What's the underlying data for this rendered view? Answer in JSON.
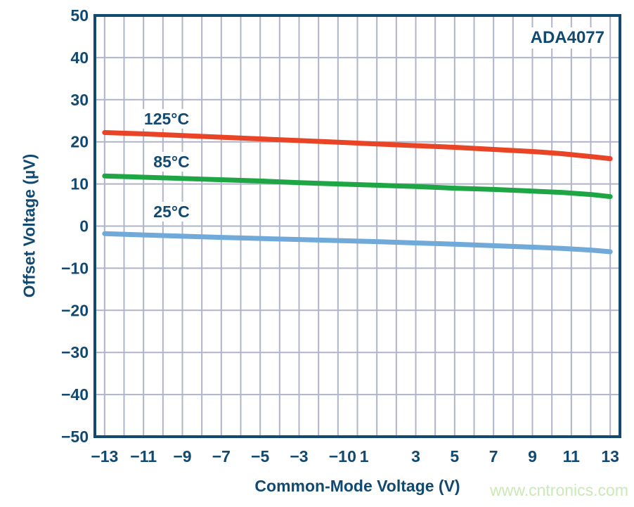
{
  "branding": {
    "part_number": "ADA4077",
    "watermark": "www.cntronics.com"
  },
  "colors": {
    "navy_text_and_axes": "#114971",
    "gridline": "#B0B4C8",
    "series_125c": "#E84425",
    "series_85c": "#1FA644",
    "series_25c": "#71A9D8",
    "watermark_green": "#CBE8B7",
    "background": "#FFFFFF"
  },
  "chart_data": {
    "type": "line",
    "title": "",
    "xlabel": "Common-Mode Voltage (V)",
    "ylabel": "Offset Voltage (µV)",
    "xlim": [
      -13.5,
      13.5
    ],
    "ylim": [
      -50,
      50
    ],
    "grid": "on",
    "legend_position": "inline-labels-above-curves",
    "x_grid": {
      "from": -13,
      "to": 13,
      "step": 1
    },
    "y_grid": {
      "from": -40,
      "to": 40,
      "step": 10
    },
    "x_ticks": [
      {
        "value": -13,
        "label": "−13"
      },
      {
        "value": -11,
        "label": "−11"
      },
      {
        "value": -9,
        "label": "−9"
      },
      {
        "value": -7,
        "label": "−7"
      },
      {
        "value": -5,
        "label": "−5"
      },
      {
        "value": -3,
        "label": "−3"
      },
      {
        "value": -1,
        "label": "−1"
      },
      {
        "value": 0,
        "label": "0",
        "dx": -8
      },
      {
        "value": 1,
        "label": "1",
        "dx": -18
      },
      {
        "value": 3,
        "label": "3"
      },
      {
        "value": 5,
        "label": "5"
      },
      {
        "value": 7,
        "label": "7"
      },
      {
        "value": 9,
        "label": "9"
      },
      {
        "value": 11,
        "label": "11"
      },
      {
        "value": 13,
        "label": "13"
      }
    ],
    "y_ticks": [
      {
        "value": 50,
        "label": "50"
      },
      {
        "value": 40,
        "label": "40"
      },
      {
        "value": 30,
        "label": "30"
      },
      {
        "value": 20,
        "label": "20"
      },
      {
        "value": 10,
        "label": "10"
      },
      {
        "value": 0,
        "label": "0"
      },
      {
        "value": -10,
        "label": "−10"
      },
      {
        "value": -20,
        "label": "−20"
      },
      {
        "value": -30,
        "label": "−30"
      },
      {
        "value": -40,
        "label": "−40"
      },
      {
        "value": -50,
        "label": "−50"
      }
    ],
    "series": [
      {
        "id": "125c",
        "name": "125°C",
        "color": "#E84425",
        "x": [
          -13,
          -11,
          -9,
          -7,
          -5,
          -3,
          -1,
          1,
          3,
          5,
          7,
          9,
          10.5,
          12,
          13
        ],
        "y": [
          22.2,
          21.9,
          21.5,
          21.1,
          20.7,
          20.3,
          19.9,
          19.5,
          19.1,
          18.7,
          18.2,
          17.7,
          17.2,
          16.5,
          16.0
        ]
      },
      {
        "id": "85c",
        "name": "85°C",
        "color": "#1FA644",
        "x": [
          -13,
          -11,
          -9,
          -7,
          -5,
          -3,
          -1,
          1,
          3,
          5,
          7,
          9,
          10.5,
          12,
          13
        ],
        "y": [
          11.9,
          11.6,
          11.3,
          11.0,
          10.7,
          10.3,
          10.0,
          9.7,
          9.4,
          9.0,
          8.7,
          8.3,
          8.0,
          7.5,
          7.0
        ]
      },
      {
        "id": "25c",
        "name": "25°C",
        "color": "#71A9D8",
        "x": [
          -13,
          -11,
          -9,
          -7,
          -5,
          -3,
          -1,
          1,
          3,
          5,
          7,
          9,
          10.5,
          12,
          13
        ],
        "y": [
          -1.8,
          -2.1,
          -2.4,
          -2.7,
          -2.95,
          -3.2,
          -3.45,
          -3.7,
          -4.0,
          -4.3,
          -4.65,
          -5.0,
          -5.3,
          -5.7,
          -6.1
        ]
      }
    ]
  }
}
